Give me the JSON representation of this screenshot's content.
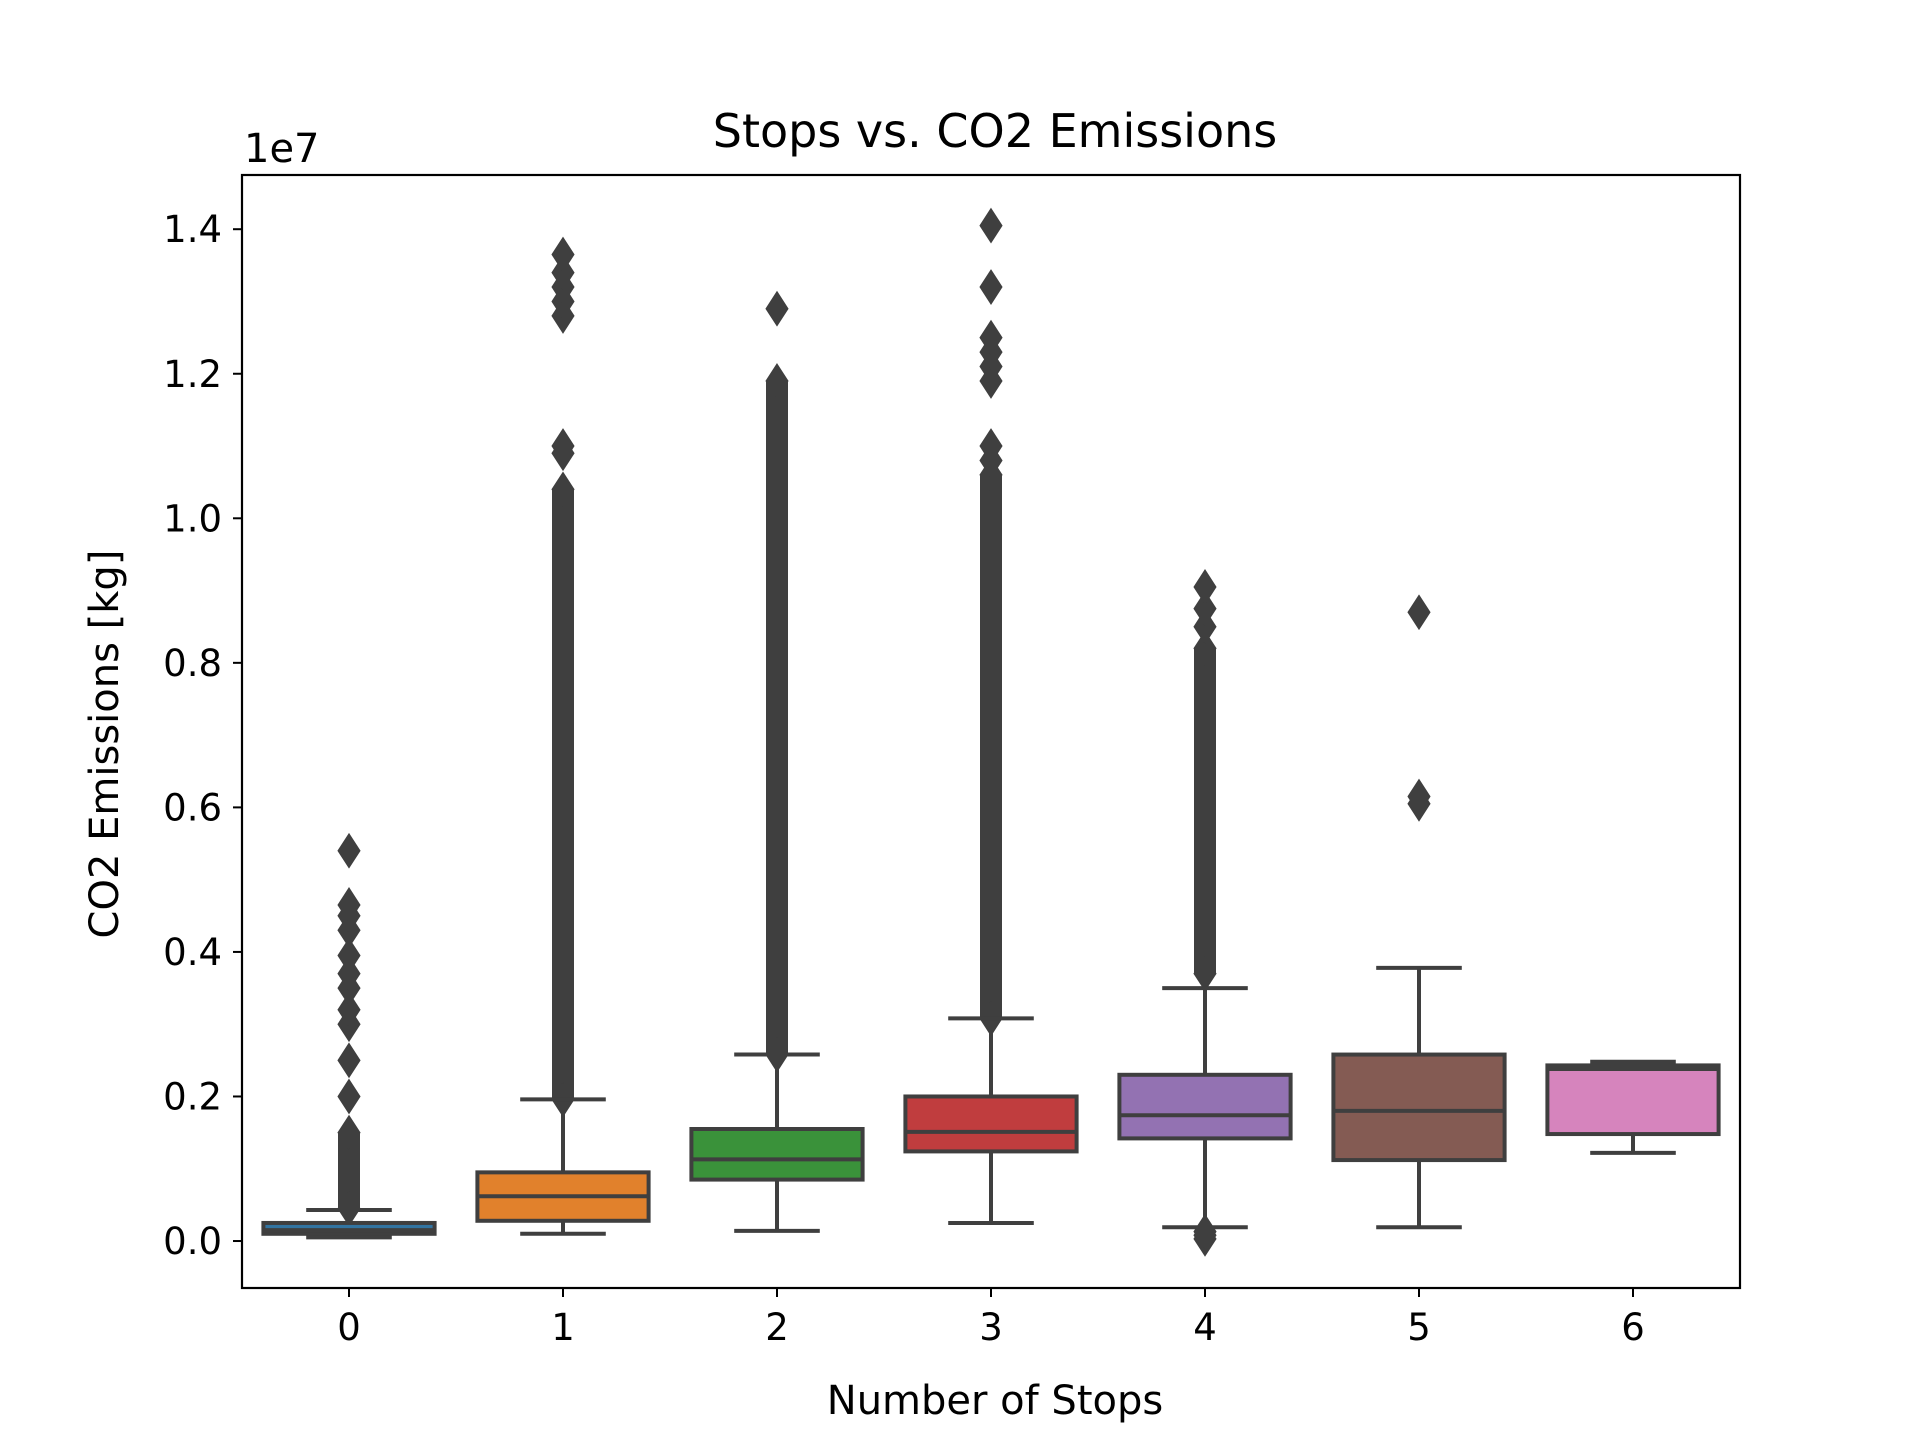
{
  "chart_data": {
    "type": "box",
    "title": "Stops vs. CO2 Emissions",
    "xlabel": "Number of Stops",
    "ylabel": "CO2 Emissions [kg]",
    "y_offset_label": "1e7",
    "ylim": [
      -0.065,
      1.475
    ],
    "y_ticks": [
      0.0,
      0.2,
      0.4,
      0.6,
      0.8,
      1.0,
      1.2,
      1.4
    ],
    "y_tick_labels": [
      "0.0",
      "0.2",
      "0.4",
      "0.6",
      "0.8",
      "1.0",
      "1.2",
      "1.4"
    ],
    "categories": [
      "0",
      "1",
      "2",
      "3",
      "4",
      "5",
      "6"
    ],
    "colors": [
      "#3274a1",
      "#e1812c",
      "#3a923a",
      "#c03d3e",
      "#9372b2",
      "#845b53",
      "#d684bd"
    ],
    "boxes": [
      {
        "category": "0",
        "whisker_low": 0.005,
        "q1": 0.01,
        "median": 0.015,
        "q3": 0.025,
        "whisker_high": 0.043,
        "outliers_range": [
          0.045,
          0.15
        ],
        "outliers": [
          0.2,
          0.25,
          0.3,
          0.32,
          0.35,
          0.37,
          0.395,
          0.43,
          0.45,
          0.465,
          0.54
        ]
      },
      {
        "category": "1",
        "whisker_low": 0.01,
        "q1": 0.028,
        "median": 0.062,
        "q3": 0.095,
        "whisker_high": 0.196,
        "outliers_range": [
          0.196,
          1.04
        ],
        "outliers": [
          1.09,
          1.1,
          1.28,
          1.3,
          1.32,
          1.34,
          1.365
        ]
      },
      {
        "category": "2",
        "whisker_low": 0.014,
        "q1": 0.085,
        "median": 0.113,
        "q3": 0.155,
        "whisker_high": 0.258,
        "outliers_range": [
          0.258,
          1.19
        ],
        "outliers": [
          1.29
        ]
      },
      {
        "category": "3",
        "whisker_low": 0.025,
        "q1": 0.124,
        "median": 0.151,
        "q3": 0.2,
        "whisker_high": 0.308,
        "outliers_range": [
          0.308,
          1.06
        ],
        "outliers": [
          1.08,
          1.1,
          1.19,
          1.21,
          1.23,
          1.25,
          1.32,
          1.405
        ]
      },
      {
        "category": "4",
        "whisker_low": 0.019,
        "q1": 0.142,
        "median": 0.174,
        "q3": 0.23,
        "whisker_high": 0.35,
        "outliers_range": [
          0.37,
          0.82
        ],
        "outliers": [
          0.003,
          0.008,
          0.013,
          0.85,
          0.875,
          0.905
        ]
      },
      {
        "category": "5",
        "whisker_low": 0.019,
        "q1": 0.112,
        "median": 0.18,
        "q3": 0.258,
        "whisker_high": 0.378,
        "outliers_range": null,
        "outliers": [
          0.605,
          0.615,
          0.87
        ]
      },
      {
        "category": "6",
        "whisker_low": 0.122,
        "q1": 0.148,
        "median": 0.238,
        "q3": 0.243,
        "whisker_high": 0.248,
        "outliers_range": null,
        "outliers": []
      }
    ],
    "grid": false,
    "legend": "none"
  }
}
